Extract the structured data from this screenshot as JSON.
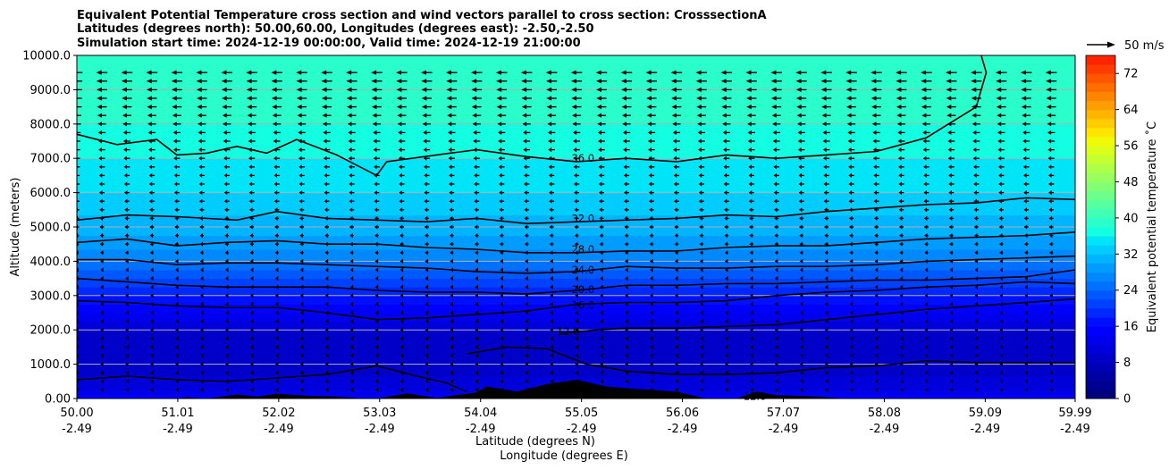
{
  "chart_data": {
    "type": "heatmap",
    "title_lines": [
      "Equivalent Potential Temperature cross section and wind vectors parallel to cross section: CrosssectionA",
      "Latitudes (degrees north): 50.00,60.00, Longitudes (degrees east): -2.50,-2.50",
      "Simulation start time: 2024-12-19 00:00:00, Valid time: 2024-12-19 21:00:00"
    ],
    "xlabel_lat": "Latitude (degrees N)",
    "xlabel_lon": "Longitude (degrees E)",
    "ylabel": "Altitude (meters)",
    "xlim": [
      50.0,
      59.99
    ],
    "ylim": [
      0,
      10000
    ],
    "grid": "horizontal",
    "x_ticks": [
      {
        "lat": "50.00",
        "lon": "-2.49",
        "v": 50.0
      },
      {
        "lat": "51.01",
        "lon": "-2.49",
        "v": 51.01
      },
      {
        "lat": "52.02",
        "lon": "-2.49",
        "v": 52.02
      },
      {
        "lat": "53.03",
        "lon": "-2.49",
        "v": 53.03
      },
      {
        "lat": "54.04",
        "lon": "-2.49",
        "v": 54.04
      },
      {
        "lat": "55.05",
        "lon": "-2.49",
        "v": 55.05
      },
      {
        "lat": "56.06",
        "lon": "-2.49",
        "v": 56.06
      },
      {
        "lat": "57.07",
        "lon": "-2.49",
        "v": 57.07
      },
      {
        "lat": "58.08",
        "lon": "-2.49",
        "v": 58.08
      },
      {
        "lat": "59.09",
        "lon": "-2.49",
        "v": 59.09
      },
      {
        "lat": "59.99",
        "lon": "-2.49",
        "v": 59.99
      }
    ],
    "y_ticks": [
      {
        "label": "0.00",
        "v": 0
      },
      {
        "label": "1000.0",
        "v": 1000
      },
      {
        "label": "2000.0",
        "v": 2000
      },
      {
        "label": "3000.0",
        "v": 3000
      },
      {
        "label": "4000.0",
        "v": 4000
      },
      {
        "label": "5000.0",
        "v": 5000
      },
      {
        "label": "6000.0",
        "v": 6000
      },
      {
        "label": "7000.0",
        "v": 7000
      },
      {
        "label": "8000.0",
        "v": 8000
      },
      {
        "label": "9000.0",
        "v": 9000
      },
      {
        "label": "10000.0",
        "v": 10000
      }
    ],
    "colorbar": {
      "label": "Equivalent potential temperature ˚C",
      "range": [
        0,
        76
      ],
      "step": 2,
      "ticks": [
        "0",
        "8",
        "16",
        "24",
        "32",
        "40",
        "48",
        "56",
        "64",
        "72"
      ],
      "colors": [
        "#00007f",
        "#000091",
        "#0000a3",
        "#0000b6",
        "#0000c8",
        "#0000db",
        "#0000ed",
        "#0000ff",
        "#0010ff",
        "#0028ff",
        "#0040ff",
        "#0058ff",
        "#0070ff",
        "#0088ff",
        "#009cff",
        "#00b4ff",
        "#00ccff",
        "#00e4f8",
        "#14ffe2",
        "#2affcc",
        "#40ffb6",
        "#56ffa0",
        "#6cff8a",
        "#82ff74",
        "#98ff5e",
        "#aeff48",
        "#c4ff32",
        "#daff1c",
        "#f0f906",
        "#ffe400",
        "#ffcc00",
        "#ffb400",
        "#ff9c00",
        "#ff8400",
        "#ff6c00",
        "#ff5400",
        "#ff3c00",
        "#ff2400",
        "#ed0c00",
        "#c80000"
      ]
    },
    "contour_labels": [
      {
        "text": "36.0",
        "x": 54.95,
        "y": 7000
      },
      {
        "text": "32.0",
        "x": 54.95,
        "y": 5250
      },
      {
        "text": "28.0",
        "x": 54.95,
        "y": 4350
      },
      {
        "text": "24.0",
        "x": 54.95,
        "y": 3750
      },
      {
        "text": "20.0",
        "x": 54.95,
        "y": 3180
      },
      {
        "text": "16.0",
        "x": 54.95,
        "y": 2720
      },
      {
        "text": "12.0",
        "x": 54.8,
        "y": 1950
      },
      {
        "text": "12.0",
        "x": 56.67,
        "y": 70
      }
    ],
    "contour_levels": [
      {
        "level": 36,
        "points": [
          [
            50.0,
            7700
          ],
          [
            50.4,
            7400
          ],
          [
            50.8,
            7550
          ],
          [
            51.0,
            7100
          ],
          [
            51.3,
            7150
          ],
          [
            51.6,
            7350
          ],
          [
            51.9,
            7150
          ],
          [
            52.2,
            7550
          ],
          [
            52.6,
            7100
          ],
          [
            53.0,
            6500
          ],
          [
            53.1,
            6900
          ],
          [
            53.6,
            7100
          ],
          [
            54.0,
            7250
          ],
          [
            54.5,
            7050
          ],
          [
            55.0,
            6900
          ],
          [
            55.5,
            7000
          ],
          [
            56.0,
            6900
          ],
          [
            56.5,
            7100
          ],
          [
            57.0,
            7000
          ],
          [
            57.5,
            7100
          ],
          [
            58.0,
            7200
          ],
          [
            58.5,
            7600
          ],
          [
            59.0,
            8500
          ],
          [
            59.1,
            9500
          ],
          [
            59.05,
            10000
          ]
        ]
      },
      {
        "level": 32,
        "points": [
          [
            50.0,
            5200
          ],
          [
            50.5,
            5350
          ],
          [
            51.0,
            5300
          ],
          [
            51.6,
            5200
          ],
          [
            52.0,
            5450
          ],
          [
            52.5,
            5250
          ],
          [
            53.0,
            5200
          ],
          [
            53.5,
            5150
          ],
          [
            54.0,
            5250
          ],
          [
            54.5,
            5100
          ],
          [
            55.0,
            5150
          ],
          [
            55.5,
            5200
          ],
          [
            56.0,
            5250
          ],
          [
            56.5,
            5350
          ],
          [
            57.0,
            5300
          ],
          [
            57.5,
            5450
          ],
          [
            58.0,
            5550
          ],
          [
            58.5,
            5650
          ],
          [
            59.0,
            5700
          ],
          [
            59.5,
            5850
          ],
          [
            59.99,
            5800
          ]
        ]
      },
      {
        "level": 28,
        "points": [
          [
            50.0,
            4550
          ],
          [
            50.5,
            4650
          ],
          [
            51.0,
            4450
          ],
          [
            51.5,
            4550
          ],
          [
            52.0,
            4600
          ],
          [
            52.5,
            4500
          ],
          [
            53.0,
            4500
          ],
          [
            53.5,
            4400
          ],
          [
            54.0,
            4350
          ],
          [
            54.5,
            4250
          ],
          [
            55.0,
            4250
          ],
          [
            55.5,
            4300
          ],
          [
            56.0,
            4300
          ],
          [
            56.5,
            4400
          ],
          [
            57.0,
            4450
          ],
          [
            57.5,
            4450
          ],
          [
            58.0,
            4550
          ],
          [
            58.5,
            4650
          ],
          [
            59.0,
            4700
          ],
          [
            59.5,
            4750
          ],
          [
            59.99,
            4850
          ]
        ]
      },
      {
        "level": 24,
        "points": [
          [
            50.0,
            4050
          ],
          [
            50.5,
            4050
          ],
          [
            51.0,
            3900
          ],
          [
            51.5,
            3950
          ],
          [
            52.0,
            3950
          ],
          [
            52.5,
            3900
          ],
          [
            53.0,
            3850
          ],
          [
            53.5,
            3800
          ],
          [
            54.0,
            3700
          ],
          [
            54.5,
            3650
          ],
          [
            55.0,
            3700
          ],
          [
            55.5,
            3850
          ],
          [
            56.0,
            3800
          ],
          [
            56.5,
            3800
          ],
          [
            57.0,
            3850
          ],
          [
            57.5,
            3850
          ],
          [
            58.0,
            3900
          ],
          [
            58.5,
            4000
          ],
          [
            59.0,
            4050
          ],
          [
            59.5,
            4100
          ],
          [
            59.99,
            4150
          ]
        ]
      },
      {
        "level": 20,
        "points": [
          [
            50.0,
            3500
          ],
          [
            50.5,
            3400
          ],
          [
            51.0,
            3300
          ],
          [
            51.5,
            3250
          ],
          [
            52.0,
            3250
          ],
          [
            52.5,
            3250
          ],
          [
            53.0,
            3150
          ],
          [
            53.5,
            3100
          ],
          [
            54.0,
            3100
          ],
          [
            54.5,
            3050
          ],
          [
            55.0,
            3150
          ],
          [
            55.5,
            3300
          ],
          [
            56.0,
            3300
          ],
          [
            56.5,
            3350
          ],
          [
            57.0,
            3350
          ],
          [
            57.5,
            3400
          ],
          [
            58.0,
            3450
          ],
          [
            58.5,
            3450
          ],
          [
            59.0,
            3500
          ],
          [
            59.5,
            3550
          ],
          [
            59.99,
            3750
          ]
        ]
      },
      {
        "level": 16,
        "points": [
          [
            50.0,
            2850
          ],
          [
            50.5,
            2800
          ],
          [
            51.0,
            2700
          ],
          [
            51.5,
            2650
          ],
          [
            52.0,
            2650
          ],
          [
            52.5,
            2500
          ],
          [
            53.0,
            2300
          ],
          [
            53.5,
            2350
          ],
          [
            54.0,
            2450
          ],
          [
            54.5,
            2550
          ],
          [
            55.0,
            2750
          ],
          [
            55.5,
            2800
          ],
          [
            56.0,
            2800
          ],
          [
            56.5,
            2850
          ],
          [
            57.0,
            3000
          ],
          [
            57.5,
            3100
          ],
          [
            58.0,
            3150
          ],
          [
            58.5,
            3250
          ],
          [
            59.0,
            3300
          ],
          [
            59.5,
            3400
          ],
          [
            59.99,
            3350
          ]
        ]
      },
      {
        "level": 12,
        "points": [
          [
            54.85,
            1900
          ],
          [
            55.2,
            2000
          ],
          [
            55.5,
            2050
          ],
          [
            56.0,
            2050
          ],
          [
            56.5,
            2100
          ],
          [
            57.0,
            2150
          ],
          [
            57.5,
            2300
          ],
          [
            58.0,
            2450
          ],
          [
            58.5,
            2600
          ],
          [
            59.0,
            2700
          ],
          [
            59.5,
            2800
          ],
          [
            59.99,
            2900
          ]
        ]
      },
      {
        "level": 12,
        "points": [
          [
            53.9,
            1300
          ],
          [
            54.1,
            1400
          ],
          [
            54.3,
            1500
          ],
          [
            54.7,
            1450
          ],
          [
            55.1,
            1000
          ],
          [
            55.5,
            800
          ],
          [
            56.0,
            700
          ],
          [
            56.5,
            700
          ],
          [
            57.0,
            750
          ],
          [
            57.5,
            900
          ],
          [
            58.0,
            950
          ],
          [
            58.5,
            1100
          ],
          [
            59.0,
            1050
          ],
          [
            59.5,
            1050
          ],
          [
            59.99,
            1050
          ]
        ]
      },
      {
        "level": 16,
        "points": [
          [
            50.0,
            550
          ],
          [
            50.5,
            650
          ],
          [
            51.0,
            550
          ],
          [
            51.5,
            500
          ],
          [
            52.0,
            600
          ],
          [
            52.5,
            700
          ],
          [
            53.0,
            950
          ],
          [
            53.4,
            650
          ],
          [
            53.7,
            450
          ],
          [
            53.9,
            200
          ]
        ]
      }
    ],
    "wind_reference": {
      "label": "50 m/s",
      "speed": 50
    },
    "wind_vectors": {
      "x_step_deg": 0.25,
      "levels": [
        250,
        500,
        750,
        1000,
        1250,
        1500,
        1750,
        2000,
        2250,
        2500,
        2750,
        3000,
        3250,
        3500,
        3750,
        4000,
        4250,
        4500,
        4750,
        5000,
        5250,
        5500,
        5750,
        6000,
        6250,
        6500,
        6750,
        7000,
        7250,
        7500,
        7750,
        8000,
        8250,
        8500,
        8750,
        9000,
        9250,
        9500
      ],
      "speed_profile_ms": [
        1.0,
        1.0,
        1.0,
        1.5,
        1.5,
        2.0,
        2.0,
        2.5,
        2.5,
        3.0,
        3.0,
        3.0,
        3.5,
        3.5,
        4.0,
        4.5,
        5.0,
        5.5,
        5.5,
        6.0,
        6.0,
        6.5,
        7.0,
        7.0,
        7.5,
        7.5,
        8.0,
        8.5,
        9.0,
        9.5,
        10.0,
        11.0,
        12.0,
        13.0,
        13.5,
        14.0,
        14.5,
        15.0
      ],
      "direction": "southward"
    },
    "theta_e_profile": [
      {
        "y": 0,
        "v": 15
      },
      {
        "y": 300,
        "v": 11
      },
      {
        "y": 1000,
        "v": 9
      },
      {
        "y": 2000,
        "v": 10
      },
      {
        "y": 2500,
        "v": 14
      },
      {
        "y": 3000,
        "v": 18
      },
      {
        "y": 3500,
        "v": 22
      },
      {
        "y": 4000,
        "v": 26
      },
      {
        "y": 4500,
        "v": 29
      },
      {
        "y": 5000,
        "v": 31
      },
      {
        "y": 6000,
        "v": 34
      },
      {
        "y": 7000,
        "v": 36
      },
      {
        "y": 8000,
        "v": 38
      },
      {
        "y": 10000,
        "v": 40
      }
    ],
    "terrain": [
      [
        50.0,
        0
      ],
      [
        51.0,
        0
      ],
      [
        51.1,
        40
      ],
      [
        51.3,
        0
      ],
      [
        51.6,
        120
      ],
      [
        51.8,
        60
      ],
      [
        52.0,
        140
      ],
      [
        52.3,
        80
      ],
      [
        52.6,
        60
      ],
      [
        52.9,
        0
      ],
      [
        53.0,
        0
      ],
      [
        53.3,
        150
      ],
      [
        53.6,
        20
      ],
      [
        54.0,
        180
      ],
      [
        54.1,
        350
      ],
      [
        54.4,
        200
      ],
      [
        54.7,
        420
      ],
      [
        55.0,
        550
      ],
      [
        55.3,
        350
      ],
      [
        55.6,
        280
      ],
      [
        56.0,
        200
      ],
      [
        56.3,
        0
      ],
      [
        56.6,
        0
      ],
      [
        56.8,
        200
      ],
      [
        57.0,
        100
      ],
      [
        57.4,
        60
      ],
      [
        57.7,
        0
      ],
      [
        59.99,
        0
      ]
    ]
  }
}
